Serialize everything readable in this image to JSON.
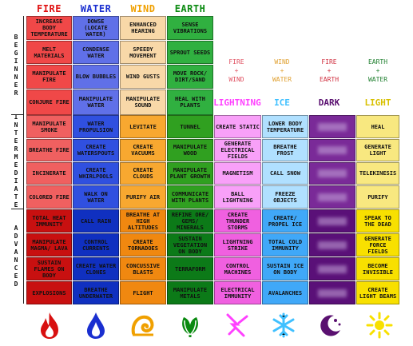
{
  "headers": [
    {
      "label": "FIRE",
      "color": "#e01010"
    },
    {
      "label": "WATER",
      "color": "#1a2fd0"
    },
    {
      "label": "WIND",
      "color": "#f0a000"
    },
    {
      "label": "EARTH",
      "color": "#0a8a10"
    }
  ],
  "levels": [
    "BEGINNER",
    "INTERMEDIATE",
    "ADVANCED"
  ],
  "beginner": [
    [
      "INCREASE BODY TEMPERATURE",
      "DOWSE (LOCATE WATER)",
      "ENHANCED HEARING",
      "SENSE VIBRATIONS"
    ],
    [
      "MELT MATERIALS",
      "CONDENSE WATER",
      "SPEEDY MOVEMENT",
      "SPROUT SEEDS"
    ],
    [
      "MANIPULATE FIRE",
      "BLOW BUBBLES",
      "WIND GUSTS",
      "MOVE ROCK/ DIRT/SAND"
    ],
    [
      "CONJURE FIRE",
      "MANIPULATE WATER",
      "MANIPULATE SOUND",
      "HEAL WITH PLANTS"
    ]
  ],
  "combos": [
    {
      "a": "FIRE",
      "op": "+",
      "b": "WIND",
      "color": "#e05060"
    },
    {
      "a": "WIND",
      "op": "+",
      "b": "WATER",
      "color": "#e0a030"
    },
    {
      "a": "FIRE",
      "op": "+",
      "b": "EARTH",
      "color": "#d03040"
    },
    {
      "a": "EARTH",
      "op": "+",
      "b": "WATER",
      "color": "#208030"
    }
  ],
  "combo_titles": [
    {
      "label": "LIGHTNING",
      "color": "#ff40ff"
    },
    {
      "label": "ICE",
      "color": "#40c0ff"
    },
    {
      "label": "DARK",
      "color": "#5a1070"
    },
    {
      "label": "LIGHT",
      "color": "#f0e020"
    }
  ],
  "intermediate": [
    [
      "MANIPULATE SMOKE",
      "WATER PROPULSION",
      "LEVITATE",
      "TUNNEL",
      "CREATE STATIC",
      "LOWER BODY TEMPERATURE",
      "",
      "HEAL"
    ],
    [
      "BREATHE FIRE",
      "CREATE WATERSPOUTS",
      "CREATE VACUUMS",
      "MANIPULATE WOOD",
      "GENERATE ELECTRICAL FIELDS",
      "BREATHE FROST",
      "",
      "GENERATE LIGHT"
    ],
    [
      "INCINERATE",
      "CREATE WHIRLPOOLS",
      "CREATE CLOUDS",
      "MANIPULATE PLANT GROWTH",
      "MAGNETISM",
      "CALL SNOW",
      "",
      "TELEKINESIS"
    ],
    [
      "COLORED FIRE",
      "WALK ON WATER",
      "PURIFY AIR",
      "COMMUNICATE WITH PLANTS",
      "BALL LIGHTNING",
      "FREEZE OBJECTS",
      "",
      "PURIFY"
    ]
  ],
  "advanced": [
    [
      "TOTAL HEAT IMMUNITY",
      "CALL RAIN",
      "BREATHE AT HIGH ALTITUDES",
      "REFINE ORE/ GEMS/ MINERALS",
      "CREATE THUNDER STORMS",
      "CREATE/ PROPEL ICE",
      "",
      "SPEAK TO THE DEAD"
    ],
    [
      "MANIPULATE MAGMA/ LAVA",
      "CONTROL CURRENTS",
      "CREATE TORNADOES",
      "SUSTAIN VEGETATION ON BODY",
      "LIGHTNING STRIKE",
      "TOTAL COLD IMMUNITY",
      "",
      "GENERATE FORCE FIELDS"
    ],
    [
      "SUSTAIN FLAMES ON BODY",
      "CREATE WATER CLONES",
      "CONCUSSIVE BLASTS",
      "TERRAFORM",
      "CONTROL MACHINES",
      "SUSTAIN ICE ON BODY",
      "",
      "BECOME INVISIBLE"
    ],
    [
      "EXPLOSIONS",
      "BREATHE UNDERWATER",
      "FLIGHT",
      "MANIPULATE METALS",
      "ELECTRICAL IMMUNITY",
      "AVALANCHES",
      "",
      "CREATE LIGHT BEAMS"
    ]
  ],
  "colors": {
    "fire_beg": "#f04848",
    "water_beg": "#6070e8",
    "wind_beg": "#f8d8a8",
    "earth_beg": "#30b040",
    "fire_int": "#f06060",
    "water_int": "#3050e0",
    "wind_int": "#f8a830",
    "earth_int": "#30a020",
    "fire_adv": "#c81010",
    "water_adv": "#1030c0",
    "wind_adv": "#f08810",
    "earth_adv": "#0c7a18",
    "light_int": "#f8e880",
    "light_adv": "#f8e000",
    "lightning_int": "#f8a0f8",
    "lightning_adv": "#f060e0",
    "ice_int": "#b0e0ff",
    "ice_adv": "#40a8f8",
    "dark_int": "#7a2a98",
    "dark_adv": "#5a1078"
  },
  "icons": [
    "fire-icon",
    "water-drop-icon",
    "wind-swirl-icon",
    "leaf-icon",
    "lightning-icon",
    "snowflake-icon",
    "moon-icon",
    "sun-icon"
  ]
}
